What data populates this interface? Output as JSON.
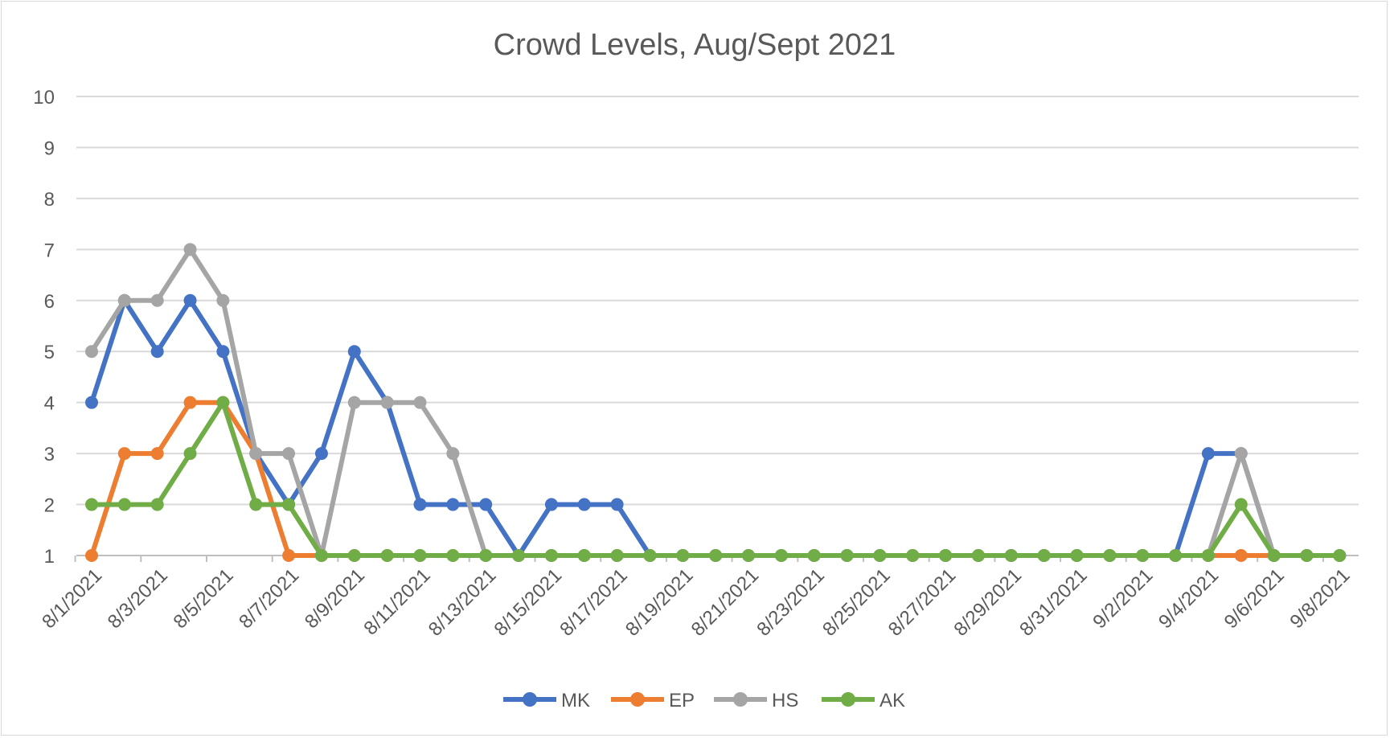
{
  "chart_data": {
    "type": "line",
    "title": "Crowd Levels, Aug/Sept 2021",
    "xlabel": "",
    "ylabel": "",
    "ylim": [
      1,
      10
    ],
    "yticks": [
      "1",
      "2",
      "3",
      "4",
      "5",
      "6",
      "7",
      "8",
      "9",
      "10"
    ],
    "grid": true,
    "legend_position": "bottom",
    "x": [
      "8/1/2021",
      "8/2/2021",
      "8/3/2021",
      "8/4/2021",
      "8/5/2021",
      "8/6/2021",
      "8/7/2021",
      "8/8/2021",
      "8/9/2021",
      "8/10/2021",
      "8/11/2021",
      "8/12/2021",
      "8/13/2021",
      "8/14/2021",
      "8/15/2021",
      "8/16/2021",
      "8/17/2021",
      "8/18/2021",
      "8/19/2021",
      "8/20/2021",
      "8/21/2021",
      "8/22/2021",
      "8/23/2021",
      "8/24/2021",
      "8/25/2021",
      "8/26/2021",
      "8/27/2021",
      "8/28/2021",
      "8/29/2021",
      "8/30/2021",
      "8/31/2021",
      "9/1/2021",
      "9/2/2021",
      "9/3/2021",
      "9/4/2021",
      "9/5/2021",
      "9/6/2021",
      "9/7/2021",
      "9/8/2021"
    ],
    "x_tick_labels": [
      "8/1/2021",
      "8/3/2021",
      "8/5/2021",
      "8/7/2021",
      "8/9/2021",
      "8/11/2021",
      "8/13/2021",
      "8/15/2021",
      "8/17/2021",
      "8/19/2021",
      "8/21/2021",
      "8/23/2021",
      "8/25/2021",
      "8/27/2021",
      "8/29/2021",
      "8/31/2021",
      "9/2/2021",
      "9/4/2021",
      "9/6/2021",
      "9/8/2021"
    ],
    "series": [
      {
        "name": "MK",
        "color": "#4472c4",
        "values": [
          4,
          6,
          5,
          6,
          5,
          3,
          2,
          3,
          5,
          4,
          2,
          2,
          2,
          1,
          2,
          2,
          2,
          1,
          1,
          1,
          1,
          1,
          1,
          1,
          1,
          1,
          1,
          1,
          1,
          1,
          1,
          1,
          1,
          1,
          3,
          3,
          1,
          1,
          1
        ]
      },
      {
        "name": "EP",
        "color": "#ed7d31",
        "values": [
          1,
          3,
          3,
          4,
          4,
          3,
          1,
          1,
          1,
          1,
          1,
          1,
          1,
          1,
          1,
          1,
          1,
          1,
          1,
          1,
          1,
          1,
          1,
          1,
          1,
          1,
          1,
          1,
          1,
          1,
          1,
          1,
          1,
          1,
          1,
          1,
          1,
          1,
          1
        ]
      },
      {
        "name": "HS",
        "color": "#a5a5a5",
        "values": [
          5,
          6,
          6,
          7,
          6,
          3,
          3,
          1,
          4,
          4,
          4,
          3,
          1,
          1,
          1,
          1,
          1,
          1,
          1,
          1,
          1,
          1,
          1,
          1,
          1,
          1,
          1,
          1,
          1,
          1,
          1,
          1,
          1,
          1,
          1,
          3,
          1,
          1,
          1
        ]
      },
      {
        "name": "AK",
        "color": "#70ad47",
        "values": [
          2,
          2,
          2,
          3,
          4,
          2,
          2,
          1,
          1,
          1,
          1,
          1,
          1,
          1,
          1,
          1,
          1,
          1,
          1,
          1,
          1,
          1,
          1,
          1,
          1,
          1,
          1,
          1,
          1,
          1,
          1,
          1,
          1,
          1,
          1,
          2,
          1,
          1,
          1
        ]
      }
    ]
  }
}
